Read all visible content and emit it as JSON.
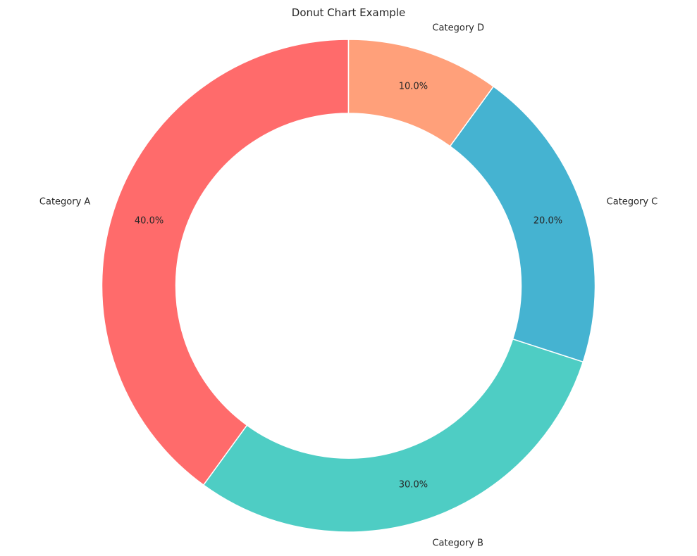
{
  "chart_data": {
    "type": "pie",
    "variant": "donut",
    "title": "Donut Chart Example",
    "categories": [
      "Category A",
      "Category B",
      "Category C",
      "Category D"
    ],
    "values": [
      40,
      30,
      20,
      10
    ],
    "percent_labels": [
      "40.0%",
      "30.0%",
      "20.0%",
      "10.0%"
    ],
    "colors": [
      "#ff6b6b",
      "#4ecdc4",
      "#45b3d1",
      "#ffa07a"
    ],
    "start_angle_deg": 90,
    "direction": "counterclockwise",
    "legend": "none"
  }
}
